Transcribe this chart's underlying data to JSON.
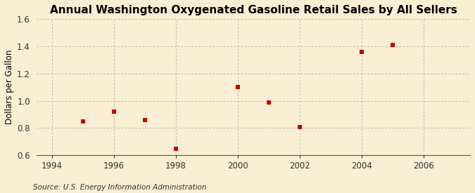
{
  "title": "Annual Washington Oxygenated Gasoline Retail Sales by All Sellers",
  "ylabel": "Dollars per Gallon",
  "source": "Source: U.S. Energy Information Administration",
  "x_values": [
    1995,
    1996,
    1997,
    1998,
    2000,
    2001,
    2002,
    2004,
    2005
  ],
  "y_values": [
    0.85,
    0.92,
    0.86,
    0.65,
    1.1,
    0.99,
    0.81,
    1.36,
    1.41
  ],
  "xlim": [
    1993.5,
    2007.5
  ],
  "ylim": [
    0.6,
    1.6
  ],
  "xticks": [
    1994,
    1996,
    1998,
    2000,
    2002,
    2004,
    2006
  ],
  "yticks": [
    0.6,
    0.8,
    1.0,
    1.2,
    1.4,
    1.6
  ],
  "marker_color": "#cc0000",
  "marker": "s",
  "marker_size": 4,
  "background_color": "#faefd4",
  "grid_color": "#aaaaaa",
  "title_fontsize": 11,
  "axis_fontsize": 8.5,
  "source_fontsize": 7.5
}
